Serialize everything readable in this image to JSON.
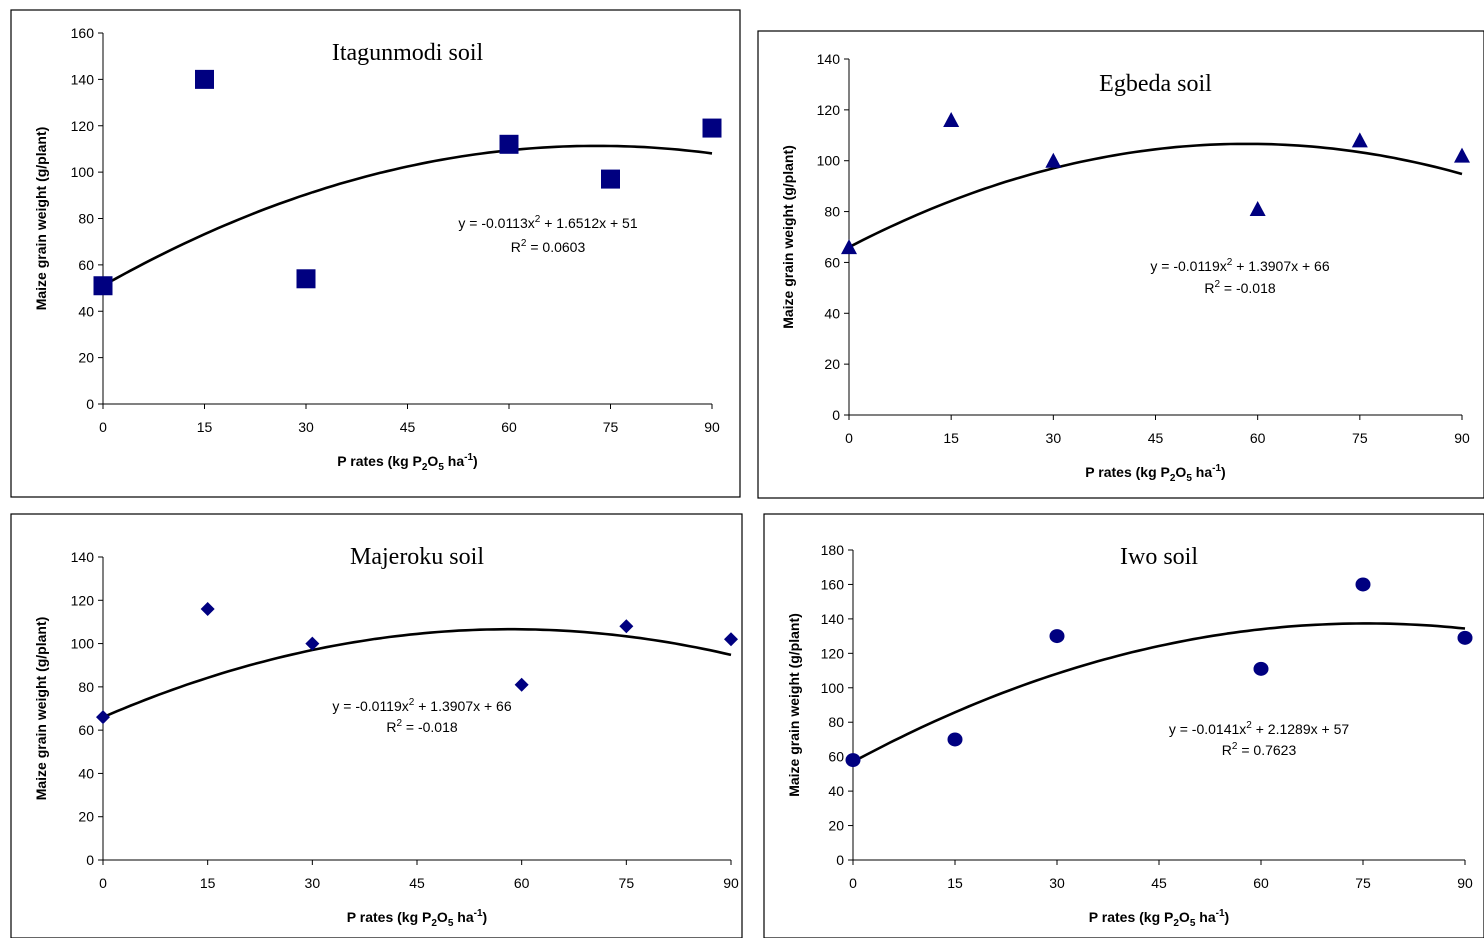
{
  "marker_color": "#000080",
  "chart_data": [
    {
      "type": "scatter",
      "title": "Itagunmodi soil",
      "xlabel": "P rates (kg P2O5 ha-1)",
      "xlabel_parts": {
        "main": "P rates (kg P",
        "sub1": "2",
        "mid": "O",
        "sub2": "5",
        "end": " ha",
        "sup": "-1",
        "close": ")"
      },
      "ylabel": "Maize grain weight (g/plant)",
      "x_ticks": [
        0,
        15,
        30,
        45,
        60,
        75,
        90
      ],
      "y_ticks": [
        0,
        20,
        40,
        60,
        80,
        100,
        120,
        140,
        160
      ],
      "xlim": [
        0,
        90
      ],
      "ylim": [
        0,
        160
      ],
      "marker": "square",
      "x": [
        0,
        15,
        30,
        60,
        75,
        90
      ],
      "y": [
        51,
        140,
        54,
        112,
        97,
        119
      ],
      "trendline": {
        "type": "polynomial-2",
        "a": -0.0113,
        "b": 1.6512,
        "c": 51
      },
      "equation": {
        "prefix": "y = -0.0113x",
        "sup": "2",
        "suffix": " + 1.6512x + 51"
      },
      "r2": {
        "prefix": "R",
        "sup": "2",
        "suffix": " = 0.0603"
      }
    },
    {
      "type": "scatter",
      "title": "Egbeda soil",
      "xlabel": "P rates (kg P2O5 ha-1)",
      "xlabel_parts": {
        "main": "P rates (kg P",
        "sub1": "2",
        "mid": "O",
        "sub2": "5",
        "end": " ha",
        "sup": "-1",
        "close": ")"
      },
      "ylabel": "Maize grain weight (g/plant)",
      "x_ticks": [
        0,
        15,
        30,
        45,
        60,
        75,
        90
      ],
      "y_ticks": [
        0,
        20,
        40,
        60,
        80,
        100,
        120,
        140
      ],
      "xlim": [
        0,
        90
      ],
      "ylim": [
        0,
        140
      ],
      "marker": "triangle",
      "x": [
        0,
        15,
        30,
        60,
        75,
        90
      ],
      "y": [
        66,
        116,
        100,
        81,
        108,
        102
      ],
      "trendline": {
        "type": "polynomial-2",
        "a": -0.0119,
        "b": 1.3907,
        "c": 66
      },
      "equation": {
        "prefix": "y = -0.0119x",
        "sup": "2",
        "suffix": " + 1.3907x + 66"
      },
      "r2": {
        "prefix": "R",
        "sup": "2",
        "suffix": " = -0.018"
      }
    },
    {
      "type": "scatter",
      "title": "Majeroku soil",
      "xlabel": "P rates (kg P2O5 ha-1)",
      "xlabel_parts": {
        "main": "P rates (kg P",
        "sub1": "2",
        "mid": "O",
        "sub2": "5",
        "end": " ha",
        "sup": "-1",
        "close": ")"
      },
      "ylabel": "Maize grain weight (g/plant)",
      "x_ticks": [
        0,
        15,
        30,
        45,
        60,
        75,
        90
      ],
      "y_ticks": [
        0,
        20,
        40,
        60,
        80,
        100,
        120,
        140
      ],
      "xlim": [
        0,
        90
      ],
      "ylim": [
        0,
        140
      ],
      "marker": "diamond",
      "x": [
        0,
        15,
        30,
        60,
        75,
        90
      ],
      "y": [
        66,
        116,
        100,
        81,
        108,
        102
      ],
      "trendline": {
        "type": "polynomial-2",
        "a": -0.0119,
        "b": 1.3907,
        "c": 66
      },
      "equation": {
        "prefix": "y = -0.0119x",
        "sup": "2",
        "suffix": " + 1.3907x + 66"
      },
      "r2": {
        "prefix": "R",
        "sup": "2",
        "suffix": " = -0.018"
      }
    },
    {
      "type": "scatter",
      "title": "Iwo soil",
      "xlabel": "P rates (kg P2O5 ha-1)",
      "xlabel_parts": {
        "main": "P rates (kg P",
        "sub1": "2",
        "mid": "O",
        "sub2": "5",
        "end": " ha",
        "sup": "-1",
        "close": ")"
      },
      "ylabel": "Maize grain weight (g/plant)",
      "x_ticks": [
        0,
        15,
        30,
        45,
        60,
        75,
        90
      ],
      "y_ticks": [
        0,
        20,
        40,
        60,
        80,
        100,
        120,
        140,
        160,
        180
      ],
      "xlim": [
        0,
        90
      ],
      "ylim": [
        0,
        180
      ],
      "marker": "circle",
      "x": [
        0,
        15,
        30,
        60,
        75,
        90
      ],
      "y": [
        58,
        70,
        130,
        111,
        160,
        129
      ],
      "trendline": {
        "type": "polynomial-2",
        "a": -0.0141,
        "b": 2.1289,
        "c": 57
      },
      "equation": {
        "prefix": "y = -0.0141x",
        "sup": "2",
        "suffix": " + 2.1289x + 57"
      },
      "r2": {
        "prefix": "R",
        "sup": "2",
        "suffix": " = 0.7623"
      }
    }
  ]
}
